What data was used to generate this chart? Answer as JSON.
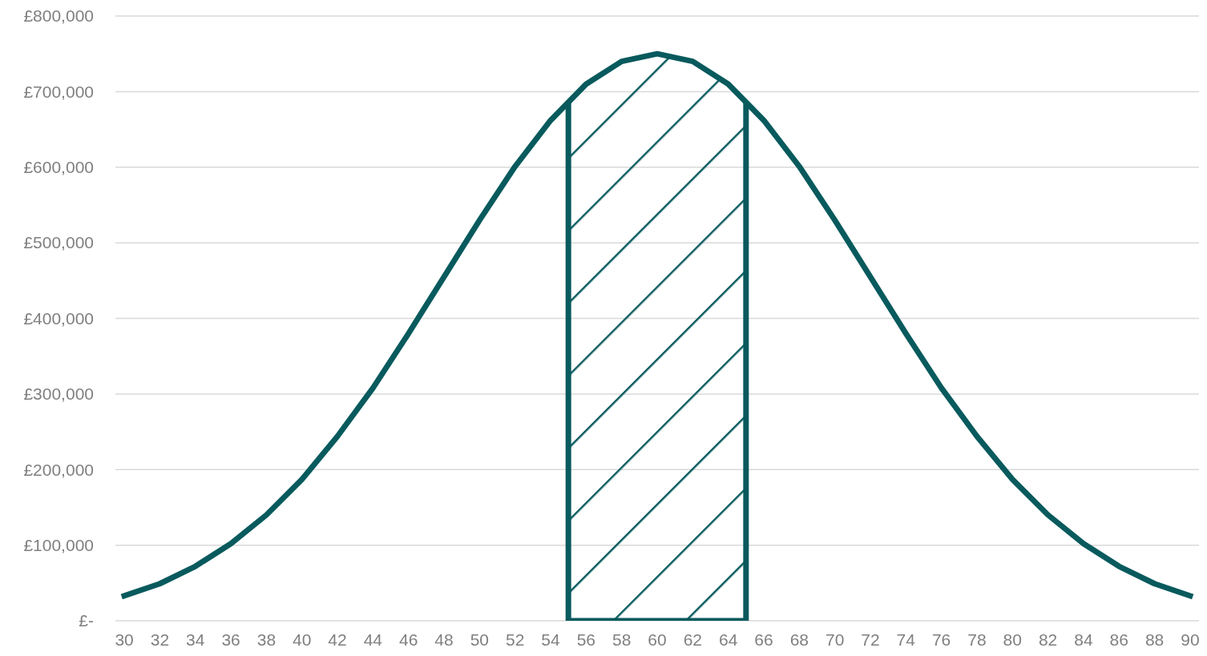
{
  "chart_data": {
    "type": "line",
    "x": [
      30,
      32,
      34,
      36,
      38,
      40,
      42,
      44,
      46,
      48,
      50,
      52,
      54,
      56,
      58,
      60,
      62,
      64,
      66,
      68,
      70,
      72,
      74,
      76,
      78,
      80,
      82,
      84,
      86,
      88,
      90
    ],
    "series": [
      {
        "color": "#085a5d",
        "values": [
          33000,
          49000,
          72000,
          102000,
          140000,
          187000,
          244000,
          308000,
          380000,
          455000,
          530000,
          601000,
          662000,
          710000,
          740000,
          750000,
          740000,
          710000,
          662000,
          601000,
          530000,
          455000,
          380000,
          308000,
          244000,
          187000,
          140000,
          102000,
          72000,
          49000,
          33000
        ]
      }
    ],
    "xlim": [
      29.5,
      90.5
    ],
    "xticks": [
      30,
      32,
      34,
      36,
      38,
      40,
      42,
      44,
      46,
      48,
      50,
      52,
      54,
      56,
      58,
      60,
      62,
      64,
      66,
      68,
      70,
      72,
      74,
      76,
      78,
      80,
      82,
      84,
      86,
      88,
      90
    ],
    "ylim": [
      0,
      800000
    ],
    "yticks": [
      {
        "value": 0,
        "label": "£-"
      },
      {
        "value": 100000,
        "label": "£100,000"
      },
      {
        "value": 200000,
        "label": "£200,000"
      },
      {
        "value": 300000,
        "label": "£300,000"
      },
      {
        "value": 400000,
        "label": "£400,000"
      },
      {
        "value": 500000,
        "label": "£500,000"
      },
      {
        "value": 600000,
        "label": "£600,000"
      },
      {
        "value": 700000,
        "label": "£700,000"
      },
      {
        "value": 800000,
        "label": "£800,000"
      }
    ],
    "bands": [
      {
        "axis": "x",
        "from": 55,
        "to": 65,
        "color": "#085a5d"
      }
    ],
    "grid": "y",
    "marker": "none",
    "line_style": "solid"
  }
}
